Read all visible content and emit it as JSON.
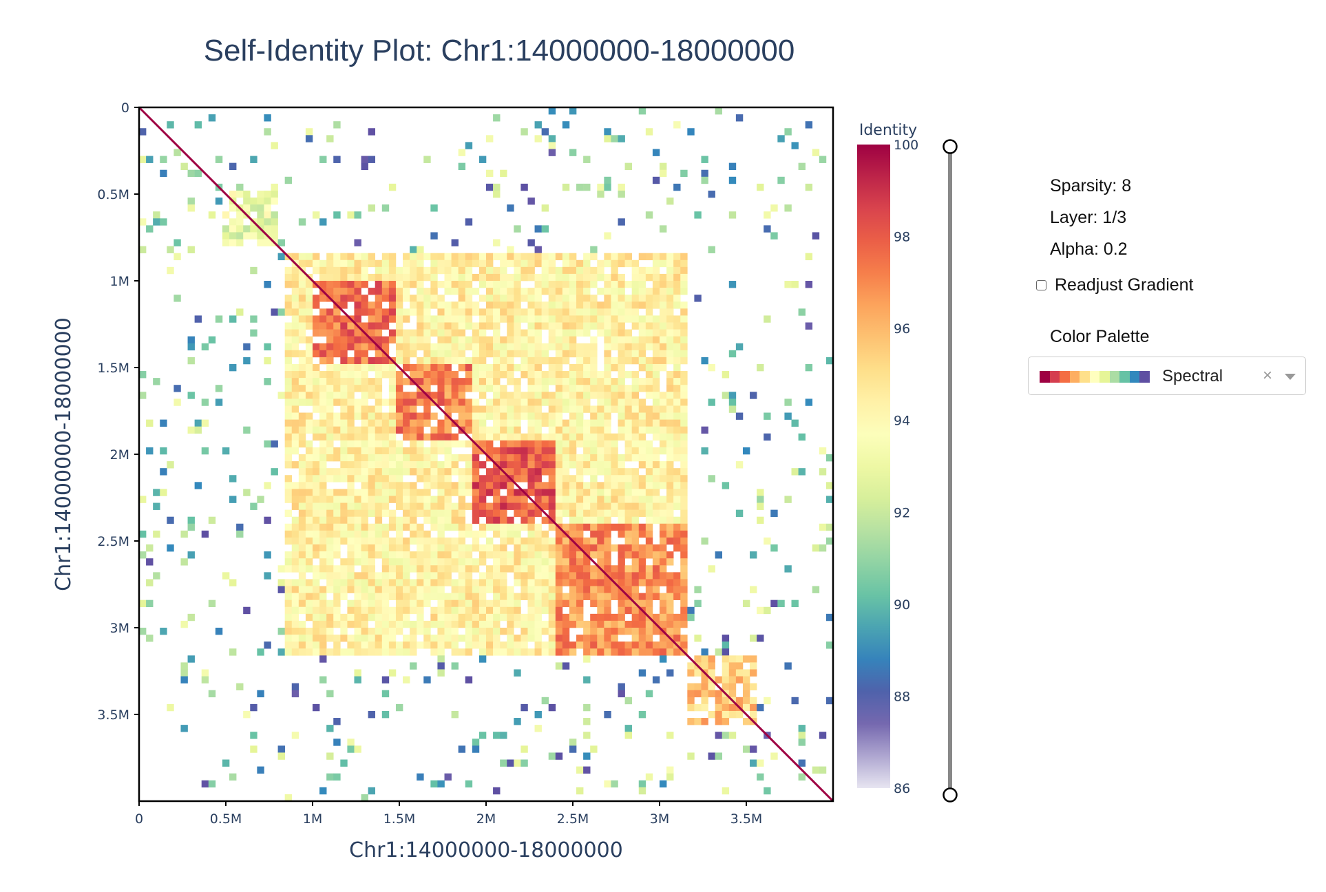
{
  "chart_data": {
    "type": "heatmap",
    "title": "Self-Identity Plot: Chr1:14000000-18000000",
    "xlabel": "Chr1:14000000-18000000",
    "ylabel": "Chr1:14000000-18000000",
    "x_range": [
      0,
      4000000
    ],
    "y_range": [
      0,
      4000000
    ],
    "x_ticks": [
      {
        "value": 0,
        "label": "0"
      },
      {
        "value": 500000,
        "label": "0.5M"
      },
      {
        "value": 1000000,
        "label": "1M"
      },
      {
        "value": 1500000,
        "label": "1.5M"
      },
      {
        "value": 2000000,
        "label": "2M"
      },
      {
        "value": 2500000,
        "label": "2.5M"
      },
      {
        "value": 3000000,
        "label": "3M"
      },
      {
        "value": 3500000,
        "label": "3.5M"
      }
    ],
    "y_ticks": [
      {
        "value": 0,
        "label": "0"
      },
      {
        "value": 500000,
        "label": "0.5M"
      },
      {
        "value": 1000000,
        "label": "1M"
      },
      {
        "value": 1500000,
        "label": "1.5M"
      },
      {
        "value": 2000000,
        "label": "2M"
      },
      {
        "value": 2500000,
        "label": "2.5M"
      },
      {
        "value": 3000000,
        "label": "3M"
      },
      {
        "value": 3500000,
        "label": "3.5M"
      }
    ],
    "colorbar": {
      "title": "Identity",
      "min": 86,
      "max": 100,
      "ticks": [
        100,
        98,
        96,
        94,
        92,
        90,
        88,
        86
      ]
    },
    "blocks": [
      {
        "x0": 0,
        "x1": 4000000,
        "y0": 0,
        "y1": 4000000,
        "identity": 90.5,
        "density": 0.07,
        "kind": "sparse"
      },
      {
        "x0": 850000,
        "x1": 3150000,
        "y0": 850000,
        "y1": 3150000,
        "identity": 94.3,
        "density": 0.9,
        "kind": "block"
      },
      {
        "x0": 1000000,
        "x1": 1500000,
        "y0": 1000000,
        "y1": 1500000,
        "identity": 97.6,
        "density": 0.9,
        "kind": "block"
      },
      {
        "x0": 1500000,
        "x1": 1920000,
        "y0": 1500000,
        "y1": 1920000,
        "identity": 97.2,
        "density": 0.9,
        "kind": "block"
      },
      {
        "x0": 1920000,
        "x1": 2420000,
        "y0": 1920000,
        "y1": 2420000,
        "identity": 98.0,
        "density": 0.9,
        "kind": "block"
      },
      {
        "x0": 2420000,
        "x1": 3150000,
        "y0": 2420000,
        "y1": 3150000,
        "identity": 96.8,
        "density": 0.9,
        "kind": "block"
      },
      {
        "x0": 3150000,
        "x1": 3580000,
        "y0": 3150000,
        "y1": 3580000,
        "identity": 95.6,
        "density": 0.75,
        "kind": "block"
      },
      {
        "x0": 500000,
        "x1": 800000,
        "y0": 500000,
        "y1": 800000,
        "identity": 93.0,
        "density": 0.75,
        "kind": "block"
      }
    ],
    "diagonal_identity": 100
  },
  "controls": {
    "sparsity": "Sparsity: 8",
    "layer": "Layer: 1/3",
    "alpha": "Alpha: 0.2",
    "readjust_label": "Readjust Gradient",
    "palette_heading": "Color Palette",
    "palette_value": "Spectral",
    "palette_clear": "×",
    "range_slider": {
      "low": 86,
      "high": 100
    }
  },
  "colors": {
    "spectral": [
      "#9e0142",
      "#d53e4f",
      "#f46d43",
      "#fdae61",
      "#fee08b",
      "#ffffbf",
      "#e6f598",
      "#abdda4",
      "#66c2a5",
      "#3288bd",
      "#5e4fa2"
    ],
    "axis_text": "#2a3f5f",
    "background": "#ffffff"
  }
}
